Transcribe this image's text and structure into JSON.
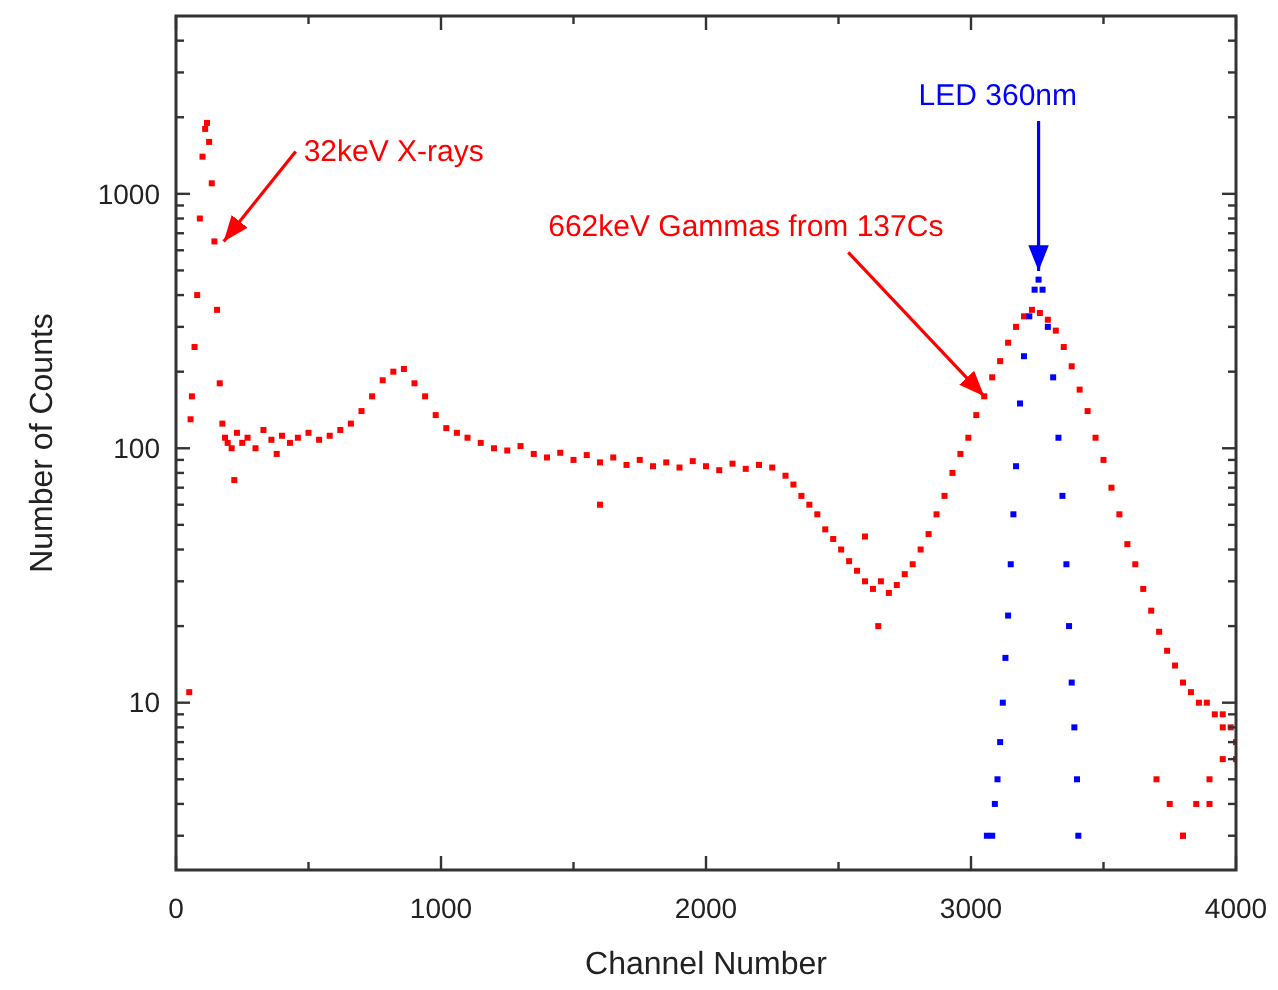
{
  "chart_data": {
    "type": "scatter",
    "xlabel": "Channel Number",
    "ylabel": "Number of Counts",
    "log": "y",
    "marker": "square",
    "grid": false,
    "xlim": [
      0,
      4000
    ],
    "ylim": [
      2.2,
      5000
    ],
    "xticks": [
      0,
      {
        "value": 500,
        "label": null
      },
      1000,
      {
        "value": 1500,
        "label": null
      },
      2000,
      {
        "value": 2500,
        "label": null
      },
      3000,
      {
        "value": 3500,
        "label": null
      },
      4000
    ],
    "yticks": [
      {
        "value": 3,
        "label": null
      },
      {
        "value": 4,
        "label": null
      },
      {
        "value": 5,
        "label": null
      },
      {
        "value": 6,
        "label": null
      },
      {
        "value": 7,
        "label": null
      },
      {
        "value": 8,
        "label": null
      },
      {
        "value": 9,
        "label": null
      },
      10,
      {
        "value": 20,
        "label": null
      },
      {
        "value": 30,
        "label": null
      },
      {
        "value": 40,
        "label": null
      },
      {
        "value": 50,
        "label": null
      },
      {
        "value": 60,
        "label": null
      },
      {
        "value": 70,
        "label": null
      },
      {
        "value": 80,
        "label": null
      },
      {
        "value": 90,
        "label": null
      },
      100,
      {
        "value": 200,
        "label": null
      },
      {
        "value": 300,
        "label": null
      },
      {
        "value": 400,
        "label": null
      },
      {
        "value": 500,
        "label": null
      },
      {
        "value": 600,
        "label": null
      },
      {
        "value": 700,
        "label": null
      },
      {
        "value": 800,
        "label": null
      },
      {
        "value": 900,
        "label": null
      },
      1000,
      {
        "value": 2000,
        "label": null
      },
      {
        "value": 3000,
        "label": null
      },
      {
        "value": 4000,
        "label": null
      }
    ],
    "annotations": [
      {
        "text": "32keV X-rays",
        "x": 180,
        "y": 650
      },
      {
        "text": "662keV Gammas from 137Cs",
        "x": 3050,
        "y": 160
      },
      {
        "text": "LED 360nm",
        "x": 3255,
        "y": 480
      }
    ],
    "series": [
      {
        "color": "#ff0000",
        "x": [
          50,
          55,
          60,
          70,
          80,
          90,
          100,
          110,
          117,
          125,
          135,
          145,
          155,
          165,
          175,
          185,
          195,
          210,
          230,
          250,
          270,
          300,
          330,
          360,
          400,
          430,
          460,
          500,
          540,
          580,
          620,
          660,
          700,
          740,
          780,
          820,
          860,
          900,
          940,
          980,
          1020,
          1060,
          1100,
          1150,
          1200,
          1250,
          1300,
          1350,
          1400,
          1450,
          1500,
          1550,
          1600,
          1650,
          1700,
          1750,
          1800,
          1850,
          1900,
          1950,
          2000,
          2050,
          2100,
          2150,
          2200,
          2250,
          2300,
          2330,
          2360,
          2390,
          2420,
          2450,
          2480,
          2510,
          2540,
          2570,
          2600,
          2630,
          2660,
          2690,
          2720,
          2750,
          2780,
          2810,
          2840,
          2870,
          2900,
          2930,
          2960,
          2990,
          3020,
          3050,
          3080,
          3110,
          3140,
          3170,
          3200,
          3230,
          3260,
          3290,
          3320,
          3350,
          3380,
          3410,
          3440,
          3470,
          3500,
          3530,
          3560,
          3590,
          3620,
          3650,
          3680,
          3710,
          3740,
          3770,
          3800,
          3830,
          3860,
          3890,
          3920,
          3950,
          3980,
          4000,
          3700,
          3750,
          3800,
          3850,
          3900,
          3950,
          4000,
          3800,
          3900,
          3950,
          220,
          380,
          1600,
          2650,
          2600
        ],
        "values": [
          11,
          130,
          160,
          250,
          400,
          800,
          1400,
          1800,
          1900,
          1600,
          1100,
          650,
          350,
          180,
          125,
          110,
          105,
          100,
          115,
          105,
          110,
          100,
          118,
          108,
          112,
          105,
          110,
          115,
          108,
          112,
          118,
          125,
          140,
          160,
          185,
          200,
          205,
          180,
          160,
          135,
          120,
          115,
          110,
          105,
          100,
          98,
          102,
          95,
          92,
          96,
          90,
          94,
          88,
          92,
          86,
          90,
          85,
          88,
          84,
          89,
          85,
          82,
          87,
          83,
          86,
          84,
          78,
          72,
          65,
          60,
          55,
          48,
          44,
          40,
          36,
          33,
          30,
          28,
          30,
          27,
          29,
          32,
          35,
          40,
          46,
          55,
          65,
          80,
          95,
          110,
          135,
          160,
          190,
          220,
          260,
          300,
          330,
          350,
          340,
          320,
          290,
          250,
          210,
          170,
          140,
          110,
          90,
          70,
          55,
          42,
          35,
          28,
          23,
          19,
          16,
          14,
          12,
          11,
          10,
          10,
          9,
          9,
          8,
          6,
          5,
          4,
          3,
          4,
          5,
          6,
          7,
          3,
          4,
          8,
          75,
          95,
          60,
          20,
          45
        ]
      },
      {
        "color": "#0000ff",
        "x": [
          3060,
          3080,
          3090,
          3100,
          3110,
          3120,
          3130,
          3140,
          3150,
          3160,
          3170,
          3185,
          3200,
          3220,
          3240,
          3255,
          3270,
          3290,
          3310,
          3330,
          3345,
          3360,
          3370,
          3380,
          3390,
          3400,
          3405
        ],
        "values": [
          3,
          3,
          4,
          5,
          7,
          10,
          15,
          22,
          35,
          55,
          85,
          150,
          230,
          330,
          420,
          460,
          420,
          300,
          190,
          110,
          65,
          35,
          20,
          12,
          8,
          5,
          3
        ]
      }
    ]
  }
}
